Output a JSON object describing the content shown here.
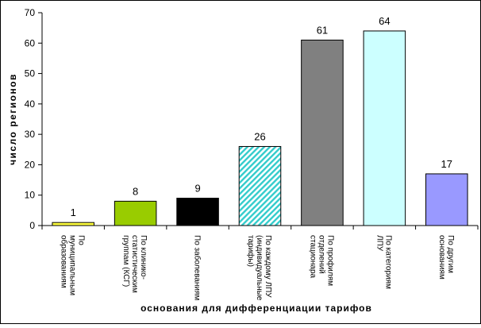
{
  "chart_data": {
    "type": "bar",
    "xlabel": "основания для дифференциации тарифов",
    "ylabel": "число регионов",
    "ylim": [
      0,
      70
    ],
    "ytick_step": 10,
    "yticks": [
      "0",
      "10",
      "20",
      "30",
      "40",
      "50",
      "60",
      "70"
    ],
    "grid": false,
    "legend": "none",
    "categories": [
      [
        "По",
        "муниципальным",
        "образованиям"
      ],
      [
        "По клинико-",
        "статистическим",
        "группам (КСГ)"
      ],
      [
        "По заболеваниям"
      ],
      [
        "По каждому ЛПУ",
        "(индивидуальные",
        "тарифы)"
      ],
      [
        "По профилям",
        "отделений",
        "стационара"
      ],
      [
        "По категориям",
        "ЛПУ"
      ],
      [
        "По другим",
        "основаниям"
      ]
    ],
    "values": [
      1,
      8,
      9,
      26,
      61,
      64,
      17
    ],
    "data_labels": [
      "1",
      "8",
      "9",
      "26",
      "61",
      "64",
      "17"
    ],
    "bar_colors": [
      "#FFFF40",
      "#99CC00",
      "#000000",
      "hatch-teal",
      "#808080",
      "#CCFFFF",
      "#9999FF"
    ]
  }
}
